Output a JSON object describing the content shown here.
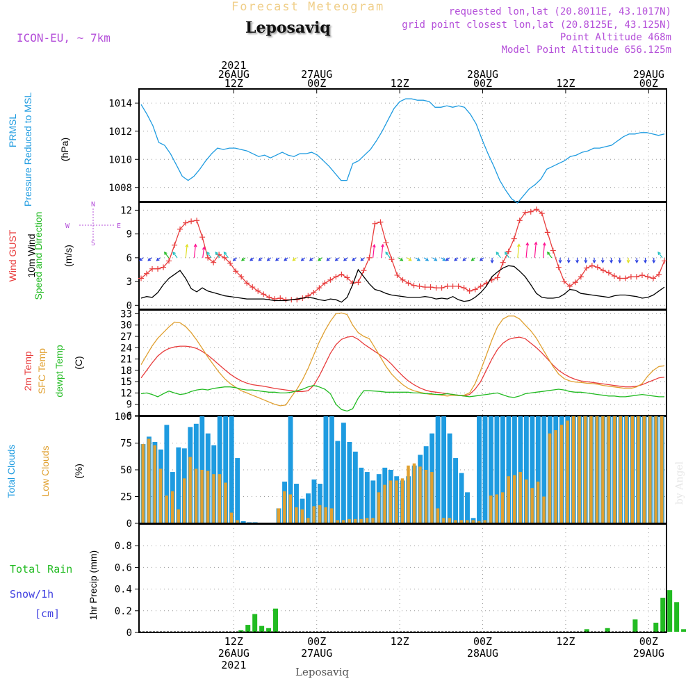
{
  "header": {
    "forecast_title": "Forecast Meteogram",
    "location": "Leposaviq",
    "model": "ICON-EU, ~ 7km",
    "requested": "requested lon,lat (20.8011E, 43.1017N)",
    "grid_point": "grid point closest lon,lat (20.8125E, 43.125N)",
    "point_altitude": "Point Altitude 468m",
    "model_altitude": "Model Point Altitude 656.125m"
  },
  "footer": {
    "location": "Leposaviq",
    "credit": "by Angel"
  },
  "time_axis": {
    "top_labels": [
      {
        "lines": [
          "2021",
          "26AUG",
          "12Z"
        ],
        "h": 12
      },
      {
        "lines": [
          "27AUG",
          "00Z"
        ],
        "h": 24
      },
      {
        "lines": [
          "12Z"
        ],
        "h": 36
      },
      {
        "lines": [
          "28AUG",
          "00Z"
        ],
        "h": 48
      },
      {
        "lines": [
          "12Z"
        ],
        "h": 60
      },
      {
        "lines": [
          "29AUG",
          "00Z"
        ],
        "h": 72
      }
    ],
    "bottom_labels": [
      {
        "lines": [
          "12Z",
          "26AUG",
          "2021"
        ],
        "h": 12
      },
      {
        "lines": [
          "00Z",
          "27AUG"
        ],
        "h": 24
      },
      {
        "lines": [
          "12Z"
        ],
        "h": 36
      },
      {
        "lines": [
          "00Z",
          "28AUG"
        ],
        "h": 48
      },
      {
        "lines": [
          "12Z"
        ],
        "h": 60
      },
      {
        "lines": [
          "00Z",
          "29AUG"
        ],
        "h": 72
      }
    ]
  },
  "panel_labels": {
    "pressure": [
      {
        "text": "PRMSL",
        "color": "#1e9be0"
      },
      {
        "text": "Pressure Reduced to MSL",
        "color": "#1e9be0"
      },
      {
        "text": "(hPa)",
        "color": "#000000"
      }
    ],
    "wind": [
      {
        "text": "Wind GUST",
        "color": "#e83c3c"
      },
      {
        "text": "10m Wind",
        "color": "#000000"
      },
      {
        "text": "Speed and Direction",
        "color": "#22bb22"
      },
      {
        "text": "(m/s)",
        "color": "#000000"
      }
    ],
    "compass": {
      "n": "N",
      "s": "S",
      "w": "W",
      "e": "E"
    },
    "temp": [
      {
        "text": "2m Temp",
        "color": "#e83c3c"
      },
      {
        "text": "SFC Temp",
        "color": "#e0a030"
      },
      {
        "text": "dewpt Temp",
        "color": "#22bb22"
      },
      {
        "text": "(C)",
        "color": "#000000"
      }
    ],
    "clouds": [
      {
        "text": "Total Clouds",
        "color": "#1e9be0"
      },
      {
        "text": "Low Clouds",
        "color": "#e0a030"
      },
      {
        "text": "(%)",
        "color": "#000000"
      }
    ],
    "precip_left": [
      {
        "text": "Total  Rain",
        "color": "#22bb22"
      },
      {
        "text": "Snow/1h",
        "color": "#4040e0"
      },
      {
        "text": "[cm]",
        "color": "#4040e0"
      }
    ],
    "precip_axis": "1hr Precip (mm)"
  },
  "chart_data": [
    {
      "type": "line",
      "panel": "pressure",
      "ylim": [
        1007,
        1015
      ],
      "yticks": [
        1008,
        1010,
        1012,
        1014
      ],
      "series": [
        {
          "color": "#1e9be0",
          "values": [
            1013.9,
            1013.2,
            1012.4,
            1011.2,
            1011.0,
            1010.4,
            1009.6,
            1008.8,
            1008.5,
            1008.8,
            1009.3,
            1009.9,
            1010.4,
            1010.8,
            1010.7,
            1010.8,
            1010.8,
            1010.7,
            1010.6,
            1010.4,
            1010.2,
            1010.3,
            1010.1,
            1010.3,
            1010.5,
            1010.3,
            1010.2,
            1010.4,
            1010.4,
            1010.5,
            1010.3,
            1009.9,
            1009.5,
            1009.0,
            1008.5,
            1008.5,
            1009.7,
            1009.9,
            1010.3,
            1010.7,
            1011.3,
            1012.0,
            1012.8,
            1013.6,
            1014.1,
            1014.3,
            1014.3,
            1014.2,
            1014.2,
            1014.1,
            1013.7,
            1013.7,
            1013.8,
            1013.7,
            1013.8,
            1013.7,
            1013.2,
            1012.5,
            1011.4,
            1010.4,
            1009.5,
            1008.5,
            1007.8,
            1007.2,
            1006.9,
            1007.4,
            1007.9,
            1008.2,
            1008.6,
            1009.3,
            1009.5,
            1009.7,
            1009.9,
            1010.2,
            1010.3,
            1010.5,
            1010.6,
            1010.8,
            1010.8,
            1010.9,
            1011.0,
            1011.3,
            1011.6,
            1011.8,
            1011.8,
            1011.9,
            1011.9,
            1011.8,
            1011.7,
            1011.8
          ]
        }
      ]
    },
    {
      "type": "line",
      "panel": "wind",
      "ylim": [
        -0.5,
        13
      ],
      "yticks": [
        0,
        3,
        6,
        9,
        12
      ],
      "series": [
        {
          "name": "Wind GUST",
          "color": "#e83c3c",
          "markers": "+",
          "values": [
            3.4,
            4.0,
            4.6,
            4.6,
            4.8,
            5.6,
            7.6,
            9.6,
            10.4,
            10.6,
            10.7,
            8.6,
            6.0,
            5.4,
            6.4,
            6.0,
            5.3,
            4.3,
            3.6,
            2.8,
            2.3,
            1.8,
            1.4,
            1.0,
            0.8,
            0.9,
            0.7,
            0.7,
            0.7,
            0.9,
            1.2,
            1.6,
            2.2,
            2.8,
            3.2,
            3.6,
            3.9,
            3.5,
            2.8,
            2.9,
            4.4,
            6.0,
            10.3,
            10.5,
            7.9,
            5.8,
            3.8,
            3.2,
            2.8,
            2.5,
            2.4,
            2.3,
            2.3,
            2.2,
            2.2,
            2.4,
            2.4,
            2.4,
            2.2,
            1.8,
            2.0,
            2.4,
            2.8,
            3.2,
            3.5,
            5.4,
            6.8,
            8.4,
            10.7,
            11.7,
            11.8,
            12.1,
            11.6,
            9.2,
            6.9,
            4.8,
            3.0,
            2.4,
            2.9,
            3.6,
            4.7,
            5.0,
            4.8,
            4.4,
            4.1,
            3.7,
            3.4,
            3.4,
            3.6,
            3.6,
            3.8,
            3.6,
            3.4,
            3.9,
            5.6
          ]
        },
        {
          "name": "10m Wind",
          "color": "#000000",
          "markers": "",
          "values": [
            0.9,
            1.1,
            1.0,
            1.6,
            2.6,
            3.4,
            3.9,
            4.4,
            3.4,
            2.1,
            1.7,
            2.2,
            1.8,
            1.6,
            1.4,
            1.2,
            1.1,
            1.0,
            0.9,
            0.8,
            0.8,
            0.8,
            0.8,
            0.7,
            0.6,
            0.6,
            0.6,
            0.7,
            0.8,
            0.9,
            1.0,
            0.9,
            0.7,
            0.6,
            0.8,
            0.7,
            0.4,
            1.0,
            2.6,
            4.5,
            3.6,
            2.7,
            2.0,
            1.8,
            1.5,
            1.3,
            1.2,
            1.1,
            1.0,
            1.0,
            1.0,
            1.1,
            1.0,
            0.8,
            0.9,
            0.8,
            1.1,
            0.7,
            0.5,
            0.6,
            1.0,
            1.6,
            2.4,
            3.6,
            4.2,
            4.7,
            5.0,
            4.9,
            4.3,
            3.6,
            2.6,
            1.5,
            1.0,
            0.9,
            0.9,
            1.0,
            1.4,
            2.0,
            1.9,
            1.5,
            1.4,
            1.3,
            1.2,
            1.1,
            1.0,
            1.2,
            1.3,
            1.3,
            1.2,
            1.1,
            0.9,
            1.0,
            1.3,
            1.8,
            2.3
          ]
        }
      ],
      "arrow_row_y": 6
    },
    {
      "type": "line",
      "panel": "temp",
      "ylim": [
        6,
        34
      ],
      "yticks": [
        6,
        9,
        12,
        15,
        18,
        21,
        24,
        27,
        30,
        33
      ],
      "series": [
        {
          "name": "2m Temp",
          "color": "#e83c3c",
          "values": [
            16.0,
            18.0,
            20.0,
            21.8,
            23.0,
            23.8,
            24.2,
            24.4,
            24.4,
            24.2,
            23.8,
            23.0,
            22.0,
            20.8,
            19.5,
            18.2,
            17.0,
            16.0,
            15.2,
            14.6,
            14.2,
            14.0,
            13.8,
            13.5,
            13.2,
            13.0,
            12.8,
            12.6,
            12.4,
            12.4,
            12.6,
            14.0,
            16.5,
            19.5,
            22.5,
            24.8,
            26.2,
            26.8,
            27.0,
            26.2,
            25.0,
            24.0,
            23.0,
            22.0,
            21.0,
            19.6,
            18.0,
            16.5,
            15.2,
            14.2,
            13.4,
            12.8,
            12.4,
            12.2,
            12.0,
            11.8,
            11.6,
            11.4,
            11.2,
            11.6,
            13.0,
            15.0,
            18.0,
            21.0,
            23.5,
            25.2,
            26.2,
            26.6,
            26.8,
            26.4,
            25.2,
            24.0,
            22.6,
            21.0,
            19.4,
            18.0,
            17.0,
            16.2,
            15.6,
            15.2,
            15.0,
            14.8,
            14.6,
            14.4,
            14.2,
            14.0,
            13.8,
            13.6,
            13.6,
            13.8,
            14.2,
            14.8,
            15.4,
            16.0,
            16.2
          ]
        },
        {
          "name": "SFC Temp",
          "color": "#e0a030",
          "values": [
            19.5,
            22.0,
            24.5,
            26.5,
            28.0,
            29.5,
            30.8,
            30.6,
            29.6,
            28.0,
            26.0,
            23.8,
            21.5,
            19.5,
            17.5,
            15.8,
            14.5,
            13.5,
            12.6,
            12.0,
            11.4,
            10.8,
            10.2,
            9.6,
            9.0,
            8.6,
            8.8,
            11.0,
            13.0,
            15.5,
            18.5,
            22.0,
            25.5,
            28.5,
            31.0,
            33.0,
            33.2,
            32.8,
            30.0,
            28.0,
            27.0,
            26.4,
            24.0,
            21.5,
            19.0,
            17.0,
            15.5,
            14.2,
            13.2,
            12.6,
            12.2,
            11.9,
            11.6,
            11.6,
            11.4,
            11.2,
            11.4,
            11.3,
            11.4,
            12.0,
            14.5,
            18.0,
            22.0,
            26.0,
            29.5,
            31.6,
            32.4,
            32.4,
            31.6,
            30.0,
            28.5,
            26.5,
            24.0,
            21.5,
            19.0,
            17.0,
            15.8,
            15.2,
            14.9,
            14.8,
            14.6,
            14.5,
            14.3,
            14.0,
            13.8,
            13.6,
            13.4,
            13.2,
            13.2,
            13.6,
            14.5,
            16.5,
            18.0,
            19.0,
            19.2
          ]
        },
        {
          "name": "dewpt Temp",
          "color": "#22bb22",
          "values": [
            11.8,
            12.0,
            11.6,
            11.0,
            11.8,
            12.5,
            12.0,
            11.6,
            11.8,
            12.4,
            12.8,
            13.0,
            12.8,
            13.2,
            13.4,
            13.6,
            13.6,
            13.4,
            13.0,
            12.8,
            12.8,
            12.6,
            12.4,
            12.2,
            12.2,
            12.0,
            12.0,
            12.2,
            12.6,
            13.0,
            13.6,
            14.0,
            13.6,
            13.0,
            11.8,
            9.0,
            7.6,
            7.2,
            7.8,
            10.6,
            12.6,
            12.6,
            12.5,
            12.4,
            12.2,
            12.2,
            12.2,
            12.2,
            12.2,
            12.0,
            12.0,
            11.8,
            11.8,
            11.6,
            11.6,
            11.8,
            11.6,
            11.4,
            11.2,
            11.0,
            11.2,
            11.4,
            11.6,
            11.8,
            12.0,
            11.5,
            11.0,
            10.8,
            11.2,
            11.8,
            12.0,
            12.2,
            12.4,
            12.6,
            12.8,
            13.0,
            12.8,
            12.4,
            12.2,
            12.2,
            12.0,
            11.8,
            11.6,
            11.4,
            11.2,
            11.2,
            11.0,
            11.0,
            11.2,
            11.4,
            11.6,
            11.4,
            11.2,
            11.0,
            11.0
          ]
        }
      ]
    },
    {
      "type": "bar",
      "panel": "clouds",
      "ylim": [
        0,
        100
      ],
      "yticks": [
        0,
        25,
        50,
        75,
        100
      ],
      "series": [
        {
          "name": "Total Clouds",
          "color": "#1e9be0",
          "values": [
            74,
            81,
            76,
            69,
            92,
            48,
            71,
            70,
            90,
            93,
            100,
            84,
            73,
            100,
            100,
            100,
            61,
            2,
            1,
            1,
            0,
            0,
            0,
            14,
            39,
            100,
            37,
            23,
            28,
            41,
            37,
            100,
            100,
            77,
            94,
            76,
            67,
            52,
            48,
            40,
            46,
            52,
            50,
            44,
            40,
            44,
            54,
            64,
            72,
            84,
            100,
            100,
            84,
            61,
            47,
            29,
            5,
            100,
            100,
            100,
            100,
            100,
            100,
            100,
            100,
            100,
            100,
            100,
            100,
            100,
            100,
            100,
            100,
            100,
            100,
            100,
            100,
            100,
            100,
            100,
            100,
            100,
            100,
            100,
            100,
            100,
            100,
            100,
            100
          ]
        },
        {
          "name": "Low Clouds",
          "color": "#e0a030",
          "values": [
            74,
            79,
            73,
            51,
            26,
            30,
            13,
            42,
            62,
            51,
            50,
            49,
            46,
            46,
            38,
            10,
            3,
            0,
            0,
            0,
            0,
            0,
            0,
            14,
            30,
            27,
            15,
            13,
            5,
            16,
            17,
            15,
            14,
            3,
            3,
            4,
            4,
            4,
            5,
            5,
            29,
            36,
            40,
            40,
            42,
            54,
            56,
            53,
            50,
            48,
            14,
            5,
            5,
            3,
            3,
            3,
            3,
            2,
            3,
            26,
            27,
            29,
            44,
            45,
            48,
            41,
            33,
            39,
            25,
            84,
            87,
            92,
            96,
            100,
            100,
            100,
            100,
            100,
            100,
            100,
            100,
            100,
            100,
            100,
            100,
            100,
            100,
            100,
            100
          ]
        }
      ]
    },
    {
      "type": "bar",
      "panel": "precip",
      "ylim": [
        0,
        1
      ],
      "yticks": [
        0,
        0.2,
        0.4,
        0.6,
        0.8
      ],
      "series": [
        {
          "name": "Total Rain",
          "color": "#22bb22",
          "values": [
            {
              "h": 13,
              "v": 0.02
            },
            {
              "h": 14,
              "v": 0.07
            },
            {
              "h": 15,
              "v": 0.17
            },
            {
              "h": 16,
              "v": 0.06
            },
            {
              "h": 17,
              "v": 0.04
            },
            {
              "h": 18,
              "v": 0.22
            },
            {
              "h": 63,
              "v": 0.03
            },
            {
              "h": 66,
              "v": 0.04
            },
            {
              "h": 70,
              "v": 0.12
            },
            {
              "h": 73,
              "v": 0.09
            },
            {
              "h": 74,
              "v": 0.32
            },
            {
              "h": 75,
              "v": 0.39
            },
            {
              "h": 76,
              "v": 0.28
            },
            {
              "h": 77,
              "v": 0.03
            }
          ]
        }
      ]
    }
  ]
}
